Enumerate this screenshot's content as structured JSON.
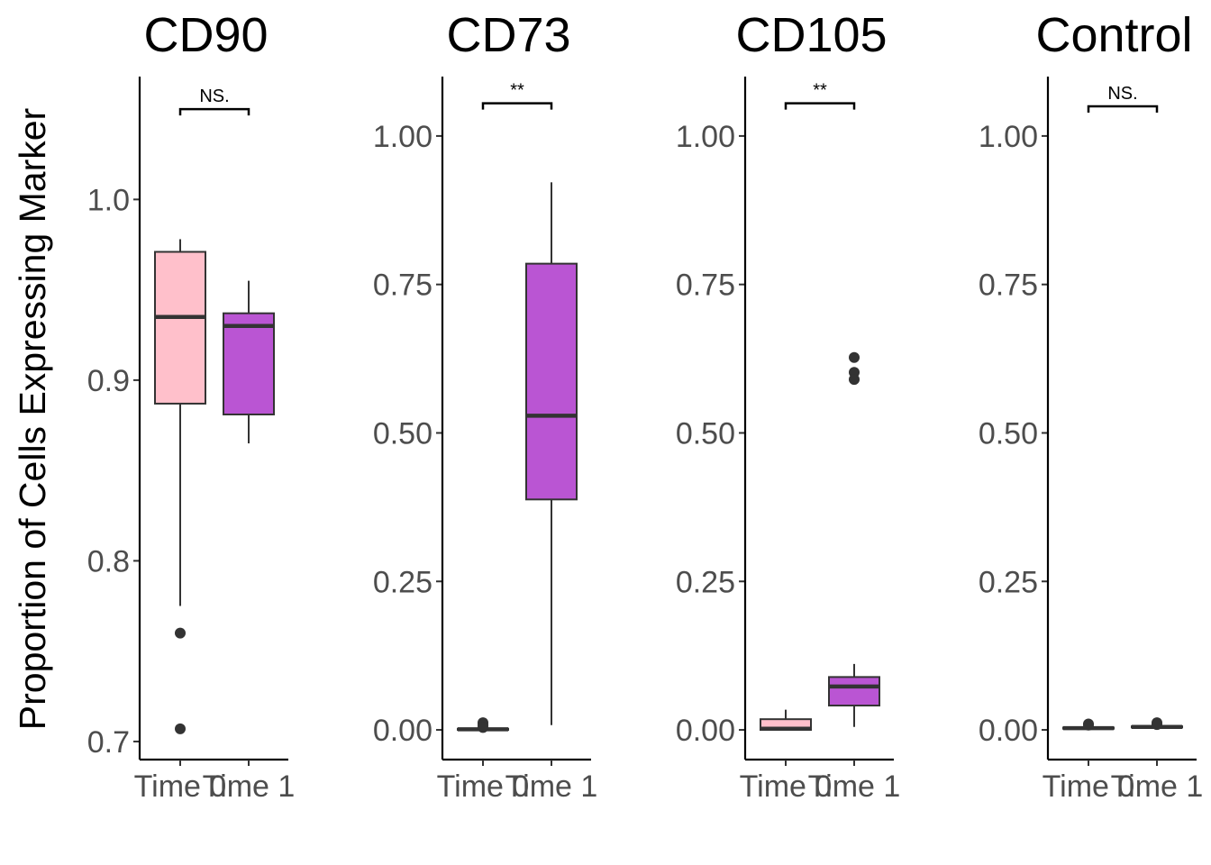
{
  "chart_data": {
    "type": "boxplot",
    "ylabel": "Proportion of Cells Expressing Marker",
    "colors": {
      "Time 0": "#ffc0cb",
      "Time 1": "#ba55d3"
    },
    "panels": [
      {
        "title": "CD90",
        "ylim": [
          0.69,
          1.068
        ],
        "yticks": [
          0.7,
          0.8,
          0.9,
          1.0
        ],
        "ytick_labels": [
          "0.7",
          "0.8",
          "0.9",
          "1.0"
        ],
        "categories": [
          "Time 0",
          "Time 1"
        ],
        "boxes": [
          {
            "group": "Time 0",
            "whisker_low": 0.775,
            "q1": 0.887,
            "median": 0.935,
            "q3": 0.971,
            "whisker_high": 0.978,
            "outliers": [
              0.76,
              0.707
            ]
          },
          {
            "group": "Time 1",
            "whisker_low": 0.865,
            "q1": 0.881,
            "median": 0.93,
            "q3": 0.937,
            "whisker_high": 0.955,
            "outliers": []
          }
        ],
        "significance": {
          "label": "NS.",
          "y": 1.05
        }
      },
      {
        "title": "CD73",
        "ylim": [
          -0.05,
          1.1
        ],
        "yticks": [
          0,
          0.25,
          0.5,
          0.75,
          1.0
        ],
        "ytick_labels": [
          "0.00",
          "0.25",
          "0.50",
          "0.75",
          "1.00"
        ],
        "categories": [
          "Time 0",
          "Time 1"
        ],
        "boxes": [
          {
            "group": "Time 0",
            "whisker_low": 0.0,
            "q1": 0.0,
            "median": 0.001,
            "q3": 0.002,
            "whisker_high": 0.003,
            "outliers": [
              0.012,
              0.008,
              0.004
            ]
          },
          {
            "group": "Time 1",
            "whisker_low": 0.008,
            "q1": 0.388,
            "median": 0.529,
            "q3": 0.785,
            "whisker_high": 0.922,
            "outliers": []
          }
        ],
        "significance": {
          "label": "**",
          "y": 1.055
        }
      },
      {
        "title": "CD105",
        "ylim": [
          -0.05,
          1.1
        ],
        "yticks": [
          0,
          0.25,
          0.5,
          0.75,
          1.0
        ],
        "ytick_labels": [
          "0.00",
          "0.25",
          "0.50",
          "0.75",
          "1.00"
        ],
        "categories": [
          "Time 0",
          "Time 1"
        ],
        "boxes": [
          {
            "group": "Time 0",
            "whisker_low": 0.0,
            "q1": 0.0,
            "median": 0.002,
            "q3": 0.018,
            "whisker_high": 0.034,
            "outliers": []
          },
          {
            "group": "Time 1",
            "whisker_low": 0.005,
            "q1": 0.041,
            "median": 0.073,
            "q3": 0.089,
            "whisker_high": 0.111,
            "outliers": [
              0.627,
              0.602,
              0.59
            ]
          }
        ],
        "significance": {
          "label": "**",
          "y": 1.055
        }
      },
      {
        "title": "Control",
        "ylim": [
          -0.05,
          1.1
        ],
        "yticks": [
          0,
          0.25,
          0.5,
          0.75,
          1.0
        ],
        "ytick_labels": [
          "0.00",
          "0.25",
          "0.50",
          "0.75",
          "1.00"
        ],
        "categories": [
          "Time 0",
          "Time 1"
        ],
        "boxes": [
          {
            "group": "Time 0",
            "whisker_low": 0.001,
            "q1": 0.002,
            "median": 0.003,
            "q3": 0.004,
            "whisker_high": 0.005,
            "outliers": [
              0.01,
              0.008
            ]
          },
          {
            "group": "Time 1",
            "whisker_low": 0.002,
            "q1": 0.004,
            "median": 0.005,
            "q3": 0.006,
            "whisker_high": 0.007,
            "outliers": [
              0.012,
              0.009
            ]
          }
        ],
        "significance": {
          "label": "NS.",
          "y": 1.05
        }
      }
    ]
  }
}
